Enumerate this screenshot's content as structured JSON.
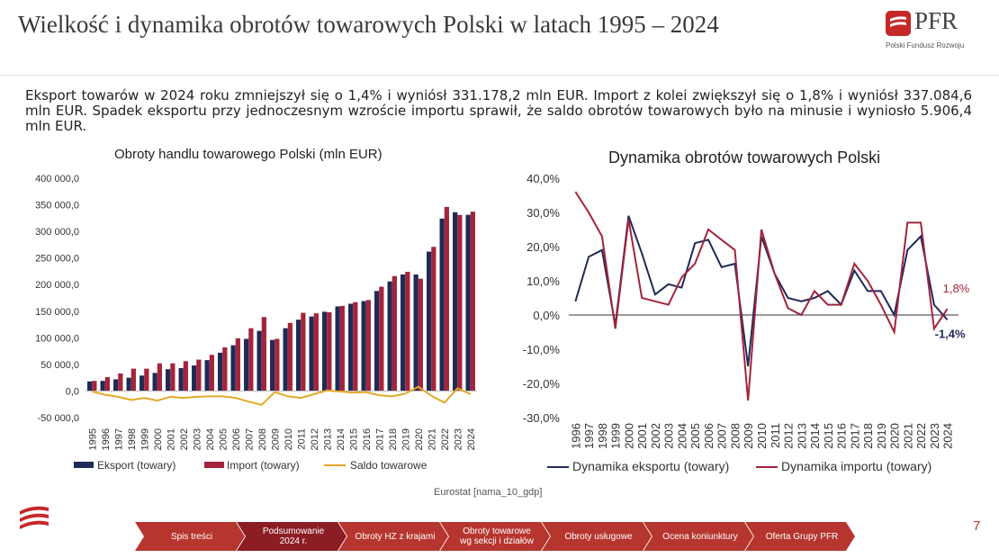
{
  "slide": {
    "title": "Wielkość i dynamika obrotów towarowych Polski w latach 1995 – 2024",
    "page_number": "7",
    "source": "Eurostat [nama_10_gdp]",
    "intro": "Eksport towarów w 2024 roku zmniejszył się o 1,4% i wyniósł 331.178,2 mln EUR. Import z kolei zwiększył się o 1,8% i wyniósł 337.084,6 mln EUR. Spadek eksportu przy jednoczesnym wzroście importu sprawił, że saldo obrotów towarowych było na minusie i wyniosło 5.906,4 mln EUR."
  },
  "logo": {
    "text": "PFR",
    "subtitle": "Polski Fundusz Rozwoju"
  },
  "nav": {
    "items": [
      {
        "label": "Spis treści"
      },
      {
        "label": "Podsumowanie 2024 r."
      },
      {
        "label": "Obroty HZ z krajami"
      },
      {
        "label": "Obroty towarowe wg sekcji i działów"
      },
      {
        "label": "Obroty usługowe"
      },
      {
        "label": "Ocena koniunktury"
      },
      {
        "label": "Oferta Grupy PFR"
      }
    ]
  },
  "colors": {
    "export": "#1f2a56",
    "import": "#a3243b",
    "balance": "#e3a828",
    "nav": "#b6362f",
    "nav_active": "#8c1d24"
  },
  "chart_data": [
    {
      "type": "bar",
      "title": "Obroty handlu towarowego Polski (mln EUR)",
      "categories": [
        "1995",
        "1996",
        "1997",
        "1998",
        "1999",
        "2000",
        "2001",
        "2002",
        "2003",
        "2004",
        "2005",
        "2006",
        "2007",
        "2008",
        "2009",
        "2010",
        "2011",
        "2012",
        "2013",
        "2014",
        "2015",
        "2016",
        "2017",
        "2018",
        "2019",
        "2020",
        "2021",
        "2022",
        "2023",
        "2024"
      ],
      "ylim": [
        -50000,
        400000
      ],
      "yticks": [
        "-50 000,0",
        "0,0",
        "50 000,0",
        "100 000,0",
        "150 000,0",
        "200 000,0",
        "250 000,0",
        "300 000,0",
        "350 000,0",
        "400 000,0"
      ],
      "legend_position": "bottom",
      "series": [
        {
          "name": "Eksport (towary)",
          "type": "bar",
          "values": [
            18000,
            19000,
            22000,
            25000,
            29000,
            34000,
            41000,
            43000,
            48000,
            58000,
            72000,
            86000,
            98000,
            113000,
            96000,
            118000,
            134000,
            140000,
            149000,
            159000,
            164000,
            169000,
            188000,
            206000,
            219000,
            219000,
            262000,
            324000,
            336000,
            331178
          ]
        },
        {
          "name": "Import (towary)",
          "type": "bar",
          "values": [
            19000,
            26000,
            33000,
            42000,
            42000,
            52000,
            52000,
            56000,
            59000,
            68000,
            82000,
            99000,
            118000,
            139000,
            98000,
            128000,
            147000,
            146000,
            148000,
            160000,
            167000,
            171000,
            196000,
            216000,
            224000,
            211000,
            271000,
            346000,
            331000,
            337085
          ]
        },
        {
          "name": "Saldo towarowe",
          "type": "line",
          "values": [
            -1000,
            -7000,
            -11000,
            -17000,
            -13000,
            -18000,
            -11000,
            -13000,
            -11000,
            -10000,
            -10000,
            -13000,
            -20000,
            -26000,
            -2000,
            -10000,
            -13000,
            -6000,
            1000,
            -1000,
            -3000,
            -2000,
            -8000,
            -10000,
            -5000,
            8000,
            -9000,
            -22000,
            5000,
            -5906
          ]
        }
      ]
    },
    {
      "type": "line",
      "title": "Dynamika obrotów towarowych Polski",
      "categories": [
        "1996",
        "1997",
        "1998",
        "1999",
        "2000",
        "2001",
        "2002",
        "2003",
        "2004",
        "2005",
        "2006",
        "2007",
        "2008",
        "2009",
        "2010",
        "2011",
        "2012",
        "2013",
        "2014",
        "2015",
        "2016",
        "2017",
        "2018",
        "2019",
        "2020",
        "2021",
        "2022",
        "2023",
        "2024"
      ],
      "ylim": [
        -30,
        40
      ],
      "yticks": [
        "-30,0%",
        "-20,0%",
        "-10,0%",
        "0,0%",
        "10,0%",
        "20,0%",
        "30,0%",
        "40,0%"
      ],
      "legend_position": "bottom",
      "series": [
        {
          "name": "Dynamika eksportu (towary)",
          "values": [
            4,
            17,
            19,
            -3,
            29,
            18,
            6,
            9,
            8,
            21,
            22,
            14,
            15,
            -15,
            23,
            12,
            5,
            4,
            5,
            7,
            3,
            13,
            7,
            7,
            0,
            19,
            23,
            3,
            -1.4
          ]
        },
        {
          "name": "Dynamika importu (towary)",
          "values": [
            36,
            30,
            23,
            -4,
            28,
            5,
            4,
            3,
            11,
            15,
            25,
            22,
            19,
            -25,
            25,
            12,
            2,
            0,
            7,
            3,
            3,
            15,
            10,
            3,
            -5,
            27,
            27,
            -4,
            1.8
          ]
        }
      ],
      "data_labels": [
        {
          "series": "Dynamika importu (towary)",
          "x": "2024",
          "text": "1,8%"
        },
        {
          "series": "Dynamika eksportu (towary)",
          "x": "2024",
          "text": "-1,4%"
        }
      ]
    }
  ]
}
